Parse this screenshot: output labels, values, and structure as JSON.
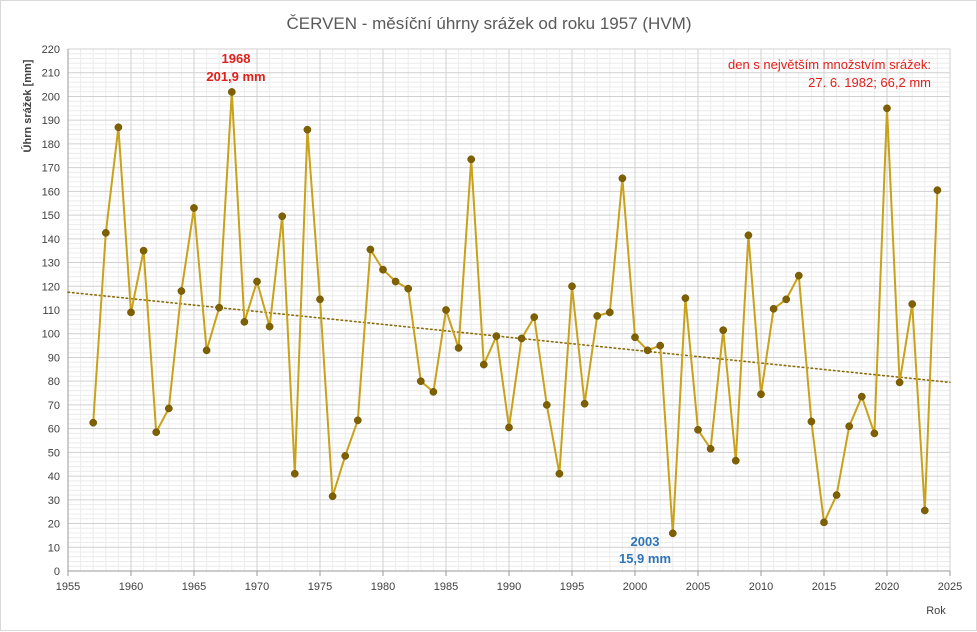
{
  "chart_data": {
    "type": "line",
    "title": "ČERVEN - měsíční úhrny srážek od roku 1957 (HVM)",
    "xlabel": "Rok",
    "ylabel": "Úhrn srážek [mm]",
    "xlim": [
      1955,
      2025
    ],
    "ylim": [
      0,
      220
    ],
    "x_ticks": [
      "1955",
      "1960",
      "1965",
      "1970",
      "1975",
      "1980",
      "1985",
      "1990",
      "1995",
      "2000",
      "2005",
      "2010",
      "2015",
      "2020",
      "2025"
    ],
    "y_ticks": [
      "0",
      "10",
      "20",
      "30",
      "40",
      "50",
      "60",
      "70",
      "80",
      "90",
      "100",
      "110",
      "120",
      "130",
      "140",
      "150",
      "160",
      "170",
      "180",
      "190",
      "200",
      "210",
      "220"
    ],
    "grid": true,
    "legend": "none",
    "series": [
      {
        "color": "#c9a11a",
        "marker_color": "#7f6000",
        "x": [
          1957,
          1958,
          1959,
          1960,
          1961,
          1962,
          1963,
          1964,
          1965,
          1966,
          1967,
          1968,
          1969,
          1970,
          1971,
          1972,
          1973,
          1974,
          1975,
          1976,
          1977,
          1978,
          1979,
          1980,
          1981,
          1982,
          1983,
          1984,
          1985,
          1986,
          1987,
          1988,
          1989,
          1990,
          1991,
          1992,
          1993,
          1994,
          1995,
          1996,
          1997,
          1998,
          1999,
          2000,
          2001,
          2002,
          2003,
          2004,
          2005,
          2006,
          2007,
          2008,
          2009,
          2010,
          2011,
          2012,
          2013,
          2014,
          2015,
          2016,
          2017,
          2018,
          2019,
          2020,
          2021,
          2022,
          2023,
          2024
        ],
        "values": [
          62.5,
          142.5,
          187,
          109,
          135,
          58.5,
          68.5,
          118,
          153,
          93,
          111,
          201.9,
          105,
          122,
          103,
          149.5,
          41,
          186,
          114.5,
          31.5,
          48.5,
          63.5,
          135.5,
          127,
          122,
          119,
          80,
          75.5,
          110,
          94,
          173.5,
          87,
          99,
          60.5,
          98,
          107,
          70,
          41,
          120,
          70.5,
          107.5,
          109,
          165.5,
          98.5,
          93,
          95,
          15.9,
          115,
          59.5,
          51.5,
          101.5,
          46.5,
          141.5,
          74.5,
          110.5,
          114.5,
          124.5,
          63,
          20.5,
          32,
          61,
          73.5,
          58,
          195,
          79.5,
          112.5,
          25.5,
          160.5
        ]
      }
    ],
    "trendline": {
      "style": "dotted",
      "color": "#8a6d0b",
      "start": [
        1955,
        117.5
      ],
      "end": [
        2025,
        79.5
      ]
    },
    "annotations": {
      "max": {
        "year": "1968",
        "value": "201,9 mm",
        "color": "#e0201b"
      },
      "min": {
        "year": "2003",
        "value": "15,9 mm",
        "color": "#2e75b6"
      },
      "note_line1": "den s největším množstvím srážek:",
      "note_line2": "27. 6. 1982; 66,2 mm"
    }
  }
}
